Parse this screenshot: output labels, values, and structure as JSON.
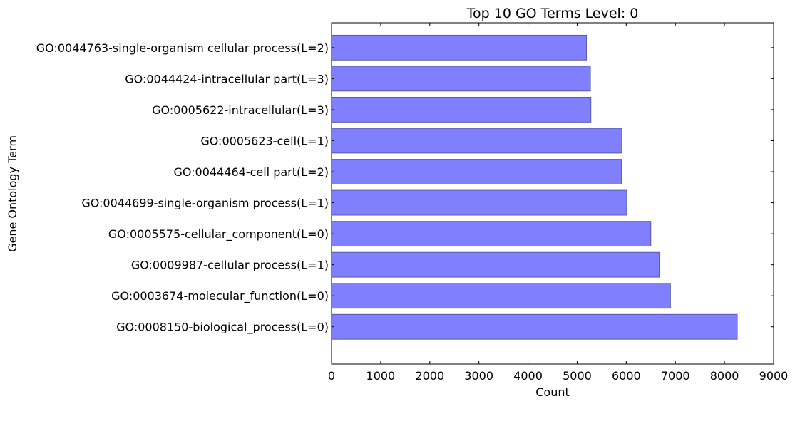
{
  "chart_data": {
    "type": "bar",
    "orientation": "horizontal",
    "title": "Top 10 GO Terms Level: 0",
    "xlabel": "Count",
    "ylabel": "Gene Ontology Term",
    "xlim": [
      0,
      9000
    ],
    "xticks": [
      0,
      1000,
      2000,
      3000,
      4000,
      5000,
      6000,
      7000,
      8000,
      9000
    ],
    "grid": false,
    "bar_color": "#8080ff",
    "bar_edge_color": "#5a5aa0",
    "categories": [
      "GO:0008150-biological_process(L=0)",
      "GO:0003674-molecular_function(L=0)",
      "GO:0009987-cellular process(L=1)",
      "GO:0005575-cellular_component(L=0)",
      "GO:0044699-single-organism process(L=1)",
      "GO:0044464-cell part(L=2)",
      "GO:0005623-cell(L=1)",
      "GO:0005622-intracellular(L=3)",
      "GO:0044424-intracellular part(L=3)",
      "GO:0044763-single-organism cellular process(L=2)"
    ],
    "values": [
      8260,
      6900,
      6670,
      6500,
      6010,
      5900,
      5910,
      5280,
      5270,
      5190
    ]
  }
}
